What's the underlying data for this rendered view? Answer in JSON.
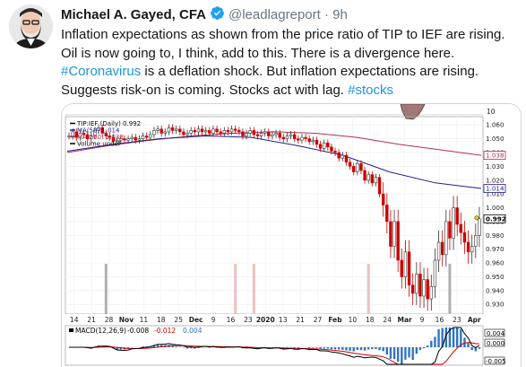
{
  "tweet": {
    "author_name": "Michael A. Gayed, CFA",
    "handle": "@leadlagreport",
    "time": "9h",
    "lines": [
      {
        "pre": "Inflation expectations as shown from the price ratio of TIP to IEF are rising.",
        "tag": "",
        "post": ""
      },
      {
        "pre": "Oil is now going to, I think, add to this. There is a divergence here.",
        "tag": "",
        "post": ""
      },
      {
        "pre": "",
        "tag": "#Coronavirus",
        "post": " is a deflation shock. But inflation expectations are rising."
      },
      {
        "pre": "Suggests risk-on is coming. Stocks act with lag. ",
        "tag": "#stocks",
        "post": ""
      }
    ]
  },
  "colors": {
    "link": "#1b95e0",
    "up_candle": "#ffffff",
    "down_candle": "#cc0000",
    "ma50": "#1f1f8f",
    "ma200": "#b03050",
    "macd": "#000000",
    "signal": "#cc0000",
    "histogram": "#2f74c0"
  },
  "chart_data": {
    "type": "candlestick",
    "legend": [
      {
        "label": "TIP:IEF (Daily) 0.992",
        "color": "#000000"
      },
      {
        "label": "MA(50) 1.014",
        "color": "#1f1f8f"
      },
      {
        "label": "MA(200) 1.038",
        "color": "#b03050"
      },
      {
        "label": "Volume undef",
        "color": "#000000"
      }
    ],
    "ylim": [
      0.923,
      1.066
    ],
    "y_ticks": [
      0.93,
      0.94,
      0.95,
      0.96,
      0.97,
      0.98,
      0.99,
      1.0,
      1.01,
      1.02,
      1.03,
      1.04,
      1.05,
      1.06
    ],
    "y_tick_labels": [
      "0.930",
      "0.940",
      "0.950",
      "0.960",
      "0.970",
      "0.980",
      "0.990",
      "1.000",
      "1.010",
      "1.020",
      "1.030",
      "1.040",
      "1.050",
      "1.060"
    ],
    "top_axis_label": "10",
    "price_tags": [
      {
        "value": 1.038,
        "label": "1.038"
      },
      {
        "value": 1.014,
        "label": "1.014"
      },
      {
        "value": 0.992,
        "label": "0.992"
      }
    ],
    "x_labels": [
      "14",
      "21",
      "28",
      "Nov",
      "11",
      "18",
      "25",
      "Dec",
      "9",
      "16",
      "23",
      "2020",
      "13",
      "21",
      "27",
      "Feb",
      "10",
      "18",
      "24",
      "Mar",
      "9",
      "16",
      "23",
      "Apr"
    ],
    "closes": [
      1.052,
      1.055,
      1.051,
      1.054,
      1.053,
      1.05,
      1.052,
      1.056,
      1.058,
      1.054,
      1.052,
      1.051,
      1.048,
      1.049,
      1.05,
      1.049,
      1.05,
      1.051,
      1.049,
      1.05,
      1.052,
      1.051,
      1.053,
      1.056,
      1.057,
      1.054,
      1.055,
      1.058,
      1.056,
      1.057,
      1.055,
      1.053,
      1.054,
      1.056,
      1.055,
      1.057,
      1.055,
      1.056,
      1.054,
      1.057,
      1.055,
      1.054,
      1.056,
      1.055,
      1.057,
      1.056,
      1.055,
      1.052,
      1.054,
      1.056,
      1.053,
      1.052,
      1.054,
      1.055,
      1.052,
      1.053,
      1.054,
      1.051,
      1.05,
      1.052,
      1.053,
      1.05,
      1.049,
      1.051,
      1.05,
      1.048,
      1.049,
      1.046,
      1.043,
      1.047,
      1.044,
      1.041,
      1.04,
      1.036,
      1.038,
      1.033,
      1.03,
      1.026,
      1.032,
      1.027,
      1.02,
      1.024,
      1.018,
      1.022,
      1.01,
      1.002,
      0.99,
      0.972,
      0.99,
      0.962,
      0.95,
      0.968,
      0.944,
      0.938,
      0.952,
      0.936,
      0.948,
      0.934,
      0.943,
      0.962,
      0.975,
      0.966,
      0.99,
      0.978,
      1.0,
      0.988,
      0.982,
      0.975,
      0.968,
      0.972,
      0.98,
      0.992
    ],
    "ma50": [
      1.041,
      1.046,
      1.05,
      1.052,
      1.051,
      1.045,
      1.038,
      1.026,
      1.018,
      1.014
    ],
    "ma200": [
      1.04,
      1.045,
      1.049,
      1.052,
      1.054,
      1.055,
      1.054,
      1.051,
      1.046,
      1.042,
      1.038
    ],
    "volume_spikes": [
      {
        "index": 10,
        "color": "#b0b0b0"
      },
      {
        "index": 45,
        "color": "#f0c0c0"
      },
      {
        "index": 50,
        "color": "#f0c0c0"
      },
      {
        "index": 81,
        "color": "#f0c0c0"
      },
      {
        "index": 103,
        "color": "#b0b0b0"
      }
    ],
    "macd_legend": "MACD(12,26,9)",
    "macd_values": [
      {
        "text": "-0.008",
        "color": "#000000"
      },
      {
        "text": "-0.012",
        "color": "#cc0000"
      },
      {
        "text": "0.004",
        "color": "#2f74c0"
      }
    ],
    "macd_tags": [
      "0.004",
      "0.000",
      "-0.005"
    ]
  }
}
